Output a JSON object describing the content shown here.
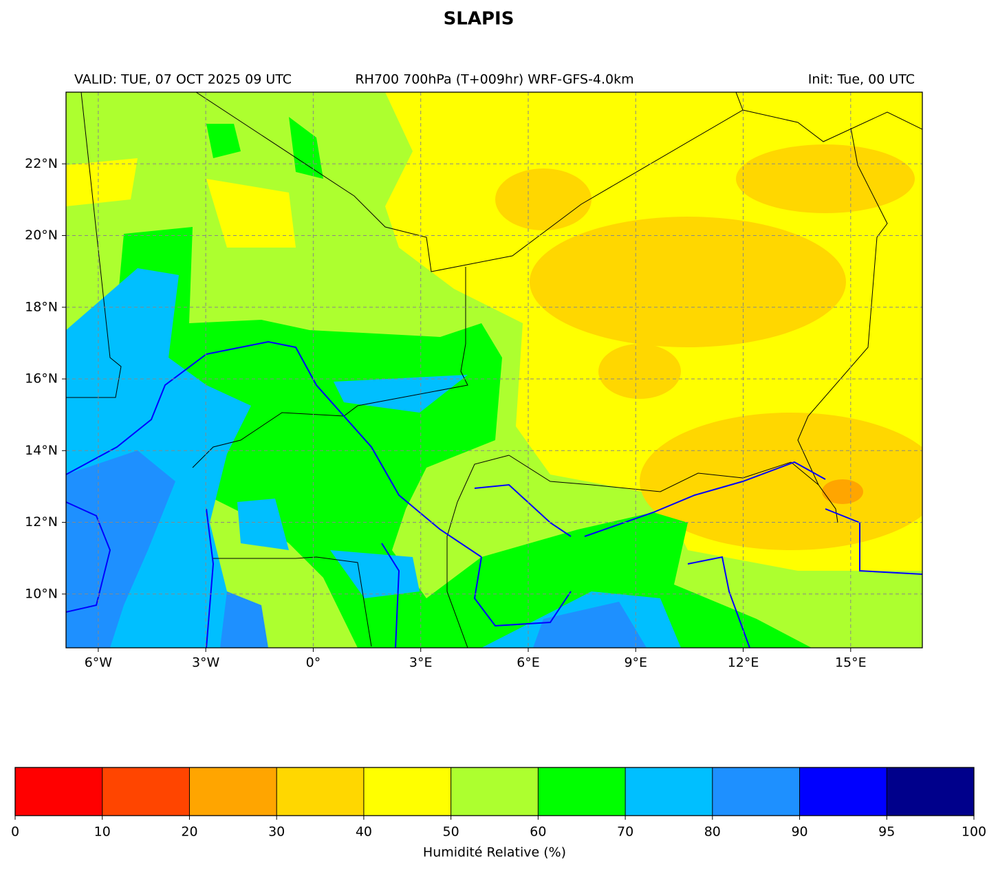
{
  "map": {
    "title": "SLAPIS",
    "subtitle_left": "VALID: TUE, 07 OCT 2025 09 UTC",
    "subtitle_center": "RH700 700hPa (T+009hr) WRF-GFS-4.0km",
    "subtitle_right": "Init: Tue, 00 UTC",
    "xlim": [
      -6.9,
      17
    ],
    "ylim": [
      8.5,
      24
    ],
    "xticks": [
      {
        "value": -6,
        "label": "6°W"
      },
      {
        "value": -3,
        "label": "3°W"
      },
      {
        "value": 0,
        "label": "0°"
      },
      {
        "value": 3,
        "label": "3°E"
      },
      {
        "value": 6,
        "label": "6°E"
      },
      {
        "value": 9,
        "label": "9°E"
      },
      {
        "value": 12,
        "label": "12°E"
      },
      {
        "value": 15,
        "label": "15°E"
      }
    ],
    "yticks": [
      {
        "value": 10,
        "label": "10°N"
      },
      {
        "value": 12,
        "label": "12°N"
      },
      {
        "value": 14,
        "label": "14°N"
      },
      {
        "value": 16,
        "label": "16°N"
      },
      {
        "value": 18,
        "label": "18°N"
      },
      {
        "value": 20,
        "label": "20°N"
      },
      {
        "value": 22,
        "label": "22°N"
      }
    ],
    "grid": true,
    "colorbar": {
      "label": "Humidité Relative (%)",
      "ticks": [
        0,
        10,
        20,
        30,
        40,
        50,
        60,
        70,
        80,
        90,
        95,
        100
      ],
      "colors": [
        "#ff0000",
        "#ff4500",
        "#ffa500",
        "#ffd700",
        "#ffff00",
        "#adff2f",
        "#00ff00",
        "#00bfff",
        "#1e90ff",
        "#0000ff",
        "#00008b"
      ]
    }
  }
}
